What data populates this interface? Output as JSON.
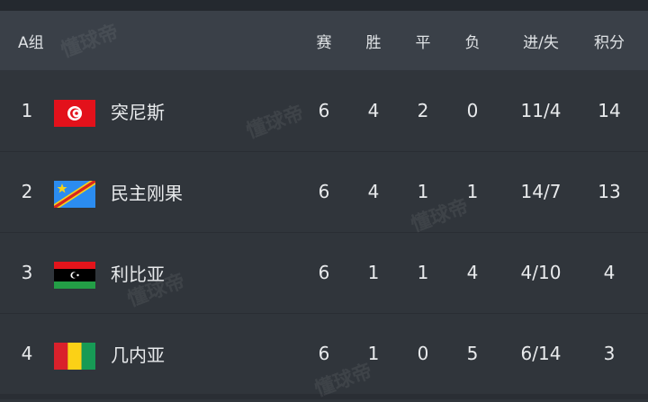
{
  "header": {
    "group": "A组",
    "cols": [
      "赛",
      "胜",
      "平",
      "负",
      "进/失",
      "积分"
    ]
  },
  "rows": [
    {
      "rank": "1",
      "team": "突尼斯",
      "flag": "tunisia-flag",
      "played": "6",
      "won": "4",
      "drawn": "2",
      "lost": "0",
      "goals": "11/4",
      "points": "14"
    },
    {
      "rank": "2",
      "team": "民主刚果",
      "flag": "dr-congo-flag",
      "played": "6",
      "won": "4",
      "drawn": "1",
      "lost": "1",
      "goals": "14/7",
      "points": "13"
    },
    {
      "rank": "3",
      "team": "利比亚",
      "flag": "libya-flag",
      "played": "6",
      "won": "1",
      "drawn": "1",
      "lost": "4",
      "goals": "4/10",
      "points": "4"
    },
    {
      "rank": "4",
      "team": "几内亚",
      "flag": "guinea-flag",
      "played": "6",
      "won": "1",
      "drawn": "0",
      "lost": "5",
      "goals": "6/14",
      "points": "3"
    }
  ],
  "watermark": "懂球帝"
}
